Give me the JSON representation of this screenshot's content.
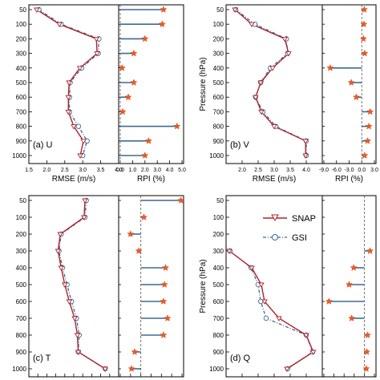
{
  "pressure_axis_label": "Pressure (hPa)",
  "pressure_ticks": [
    50,
    100,
    200,
    300,
    400,
    500,
    600,
    700,
    800,
    900,
    1000
  ],
  "legend": {
    "snap": "SNAP",
    "gsi": "GSI"
  },
  "colors": {
    "snap": "#b0232a",
    "gsi": "#3d6a94",
    "rpi_bar": "#3d6a94",
    "rpi_star": "#f05a1e"
  },
  "chart_data": [
    {
      "type": "line",
      "panel_label": "(a) U",
      "xlabel": "RMSE (m/s)",
      "xlim": [
        1.5,
        4.0
      ],
      "xticks": [
        "1.5",
        "2.0",
        "2.5",
        "3.0",
        "3.5",
        "4.0"
      ],
      "pressure": [
        50,
        100,
        200,
        300,
        400,
        500,
        600,
        700,
        800,
        900,
        1000
      ],
      "series": [
        {
          "name": "SNAP",
          "values": [
            1.72,
            2.35,
            3.38,
            3.4,
            2.92,
            2.62,
            2.6,
            2.6,
            2.75,
            3.02,
            2.93
          ]
        },
        {
          "name": "GSI",
          "values": [
            1.78,
            2.4,
            3.45,
            3.43,
            2.97,
            2.65,
            2.63,
            2.63,
            2.88,
            3.12,
            3.0
          ]
        }
      ],
      "rpi": {
        "xlabel": "RPI (%)",
        "xlim": [
          0,
          5
        ],
        "xticks": [
          "0.0",
          "1.0",
          "2.0",
          "3.0",
          "4.0",
          "5.0"
        ],
        "values": [
          3.5,
          3.4,
          2.0,
          1.1,
          0.15,
          1.1,
          0.65,
          0.2,
          4.6,
          2.3,
          2.0
        ]
      }
    },
    {
      "type": "line",
      "panel_label": "(b) V",
      "xlabel": "RMSE (m/s)",
      "xlim": [
        1.5,
        4.5
      ],
      "xticks": [
        "2.0",
        "2.5",
        "3.0",
        "3.5",
        "4.0"
      ],
      "pressure": [
        50,
        100,
        200,
        300,
        400,
        500,
        600,
        700,
        800,
        900,
        1000
      ],
      "series": [
        {
          "name": "SNAP",
          "values": [
            1.78,
            2.3,
            3.33,
            3.45,
            2.95,
            2.58,
            2.42,
            2.6,
            3.0,
            3.98,
            3.98
          ]
        },
        {
          "name": "GSI",
          "values": [
            1.8,
            2.4,
            3.38,
            3.42,
            2.88,
            2.58,
            2.42,
            2.65,
            3.05,
            4.0,
            4.0
          ]
        }
      ],
      "rpi": {
        "xlabel": "RPI (%)",
        "xlim": [
          -9,
          3
        ],
        "xticks": [
          "-9.0",
          "-6.0",
          "-3.0",
          "0.0",
          "3.0"
        ],
        "values": [
          0.6,
          0.5,
          0.4,
          0.7,
          -7.5,
          -2.5,
          -1.3,
          2.0,
          1.7,
          1.4,
          0.7
        ]
      }
    },
    {
      "type": "line",
      "panel_label": "(c) T",
      "xlabel": "RMSE (K)",
      "xlim": [
        0.4,
        2.4
      ],
      "xticks": [
        "0.4",
        "0.6",
        "0.8",
        "1.0",
        "1.2",
        "1.4",
        "1.6",
        "1.8",
        "2.0",
        "2.2",
        "2.4"
      ],
      "pressure": [
        50,
        100,
        200,
        300,
        400,
        500,
        600,
        700,
        800,
        900,
        1000
      ],
      "series": [
        {
          "name": "SNAP",
          "values": [
            1.65,
            1.63,
            1.1,
            1.05,
            1.12,
            1.2,
            1.3,
            1.42,
            1.48,
            1.5,
            2.1
          ]
        },
        {
          "name": "GSI",
          "values": [
            1.68,
            1.65,
            1.12,
            1.07,
            1.15,
            1.25,
            1.35,
            1.46,
            1.52,
            1.5,
            2.1
          ]
        }
      ],
      "rpi": {
        "xlabel": "RPI (%)",
        "xlim": [
          -2,
          4
        ],
        "xticks": [
          "-2.0",
          "-1.0",
          "0.0",
          "1.0",
          "2.0",
          "3.0",
          "4.0"
        ],
        "values": [
          3.9,
          0.3,
          -1.0,
          -0.2,
          2.4,
          2.3,
          2.2,
          2.6,
          2.2,
          -0.6,
          -0.9
        ]
      }
    },
    {
      "type": "line",
      "panel_label": "(d) Q",
      "xlabel": "RMSE (g/kg)",
      "xlim": [
        0,
        3
      ],
      "xticks": [
        "0.0",
        "0.5",
        "1.0",
        "1.5",
        "2.0",
        "2.5",
        "3.0"
      ],
      "pressure": [
        300,
        400,
        500,
        600,
        700,
        800,
        900,
        1000
      ],
      "series": [
        {
          "name": "SNAP",
          "values": [
            0.1,
            0.8,
            1.1,
            1.2,
            1.65,
            2.5,
            2.72,
            1.9
          ]
        },
        {
          "name": "GSI",
          "values": [
            0.12,
            0.78,
            1.0,
            1.08,
            1.25,
            2.5,
            2.7,
            1.92
          ]
        }
      ],
      "rpi": {
        "xlabel": "RPI (%)",
        "xlim": [
          -16,
          4
        ],
        "xticks": [
          "-16",
          "-12",
          "-8",
          "-4",
          "0",
          "4"
        ],
        "values": [
          2.3,
          -4.2,
          -6.0,
          -14.0,
          -5.0,
          1.3,
          1.0,
          0.8
        ]
      }
    }
  ]
}
